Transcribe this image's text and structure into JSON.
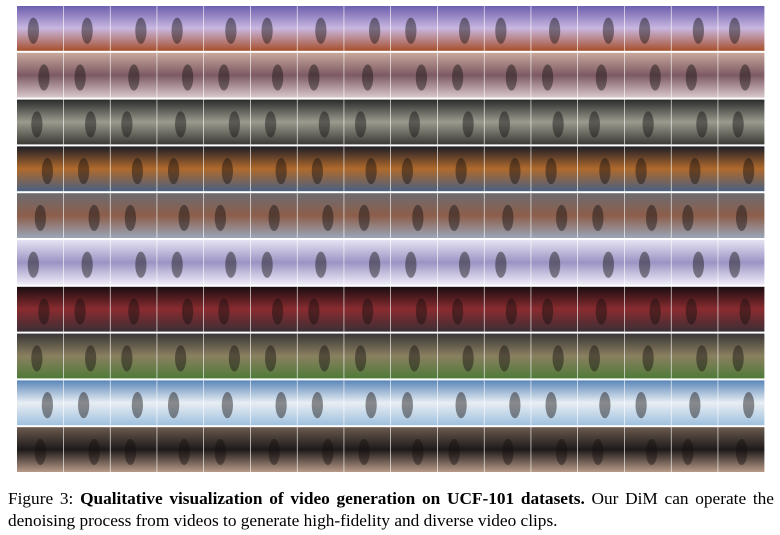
{
  "figure": {
    "label": "Figure 3:",
    "caption_bold": "Qualitative visualization of video generation on UCF-101 datasets.",
    "caption_text": "Our DiM can operate the denoising process from videos to generate high-fidelity and diverse video clips."
  }
}
